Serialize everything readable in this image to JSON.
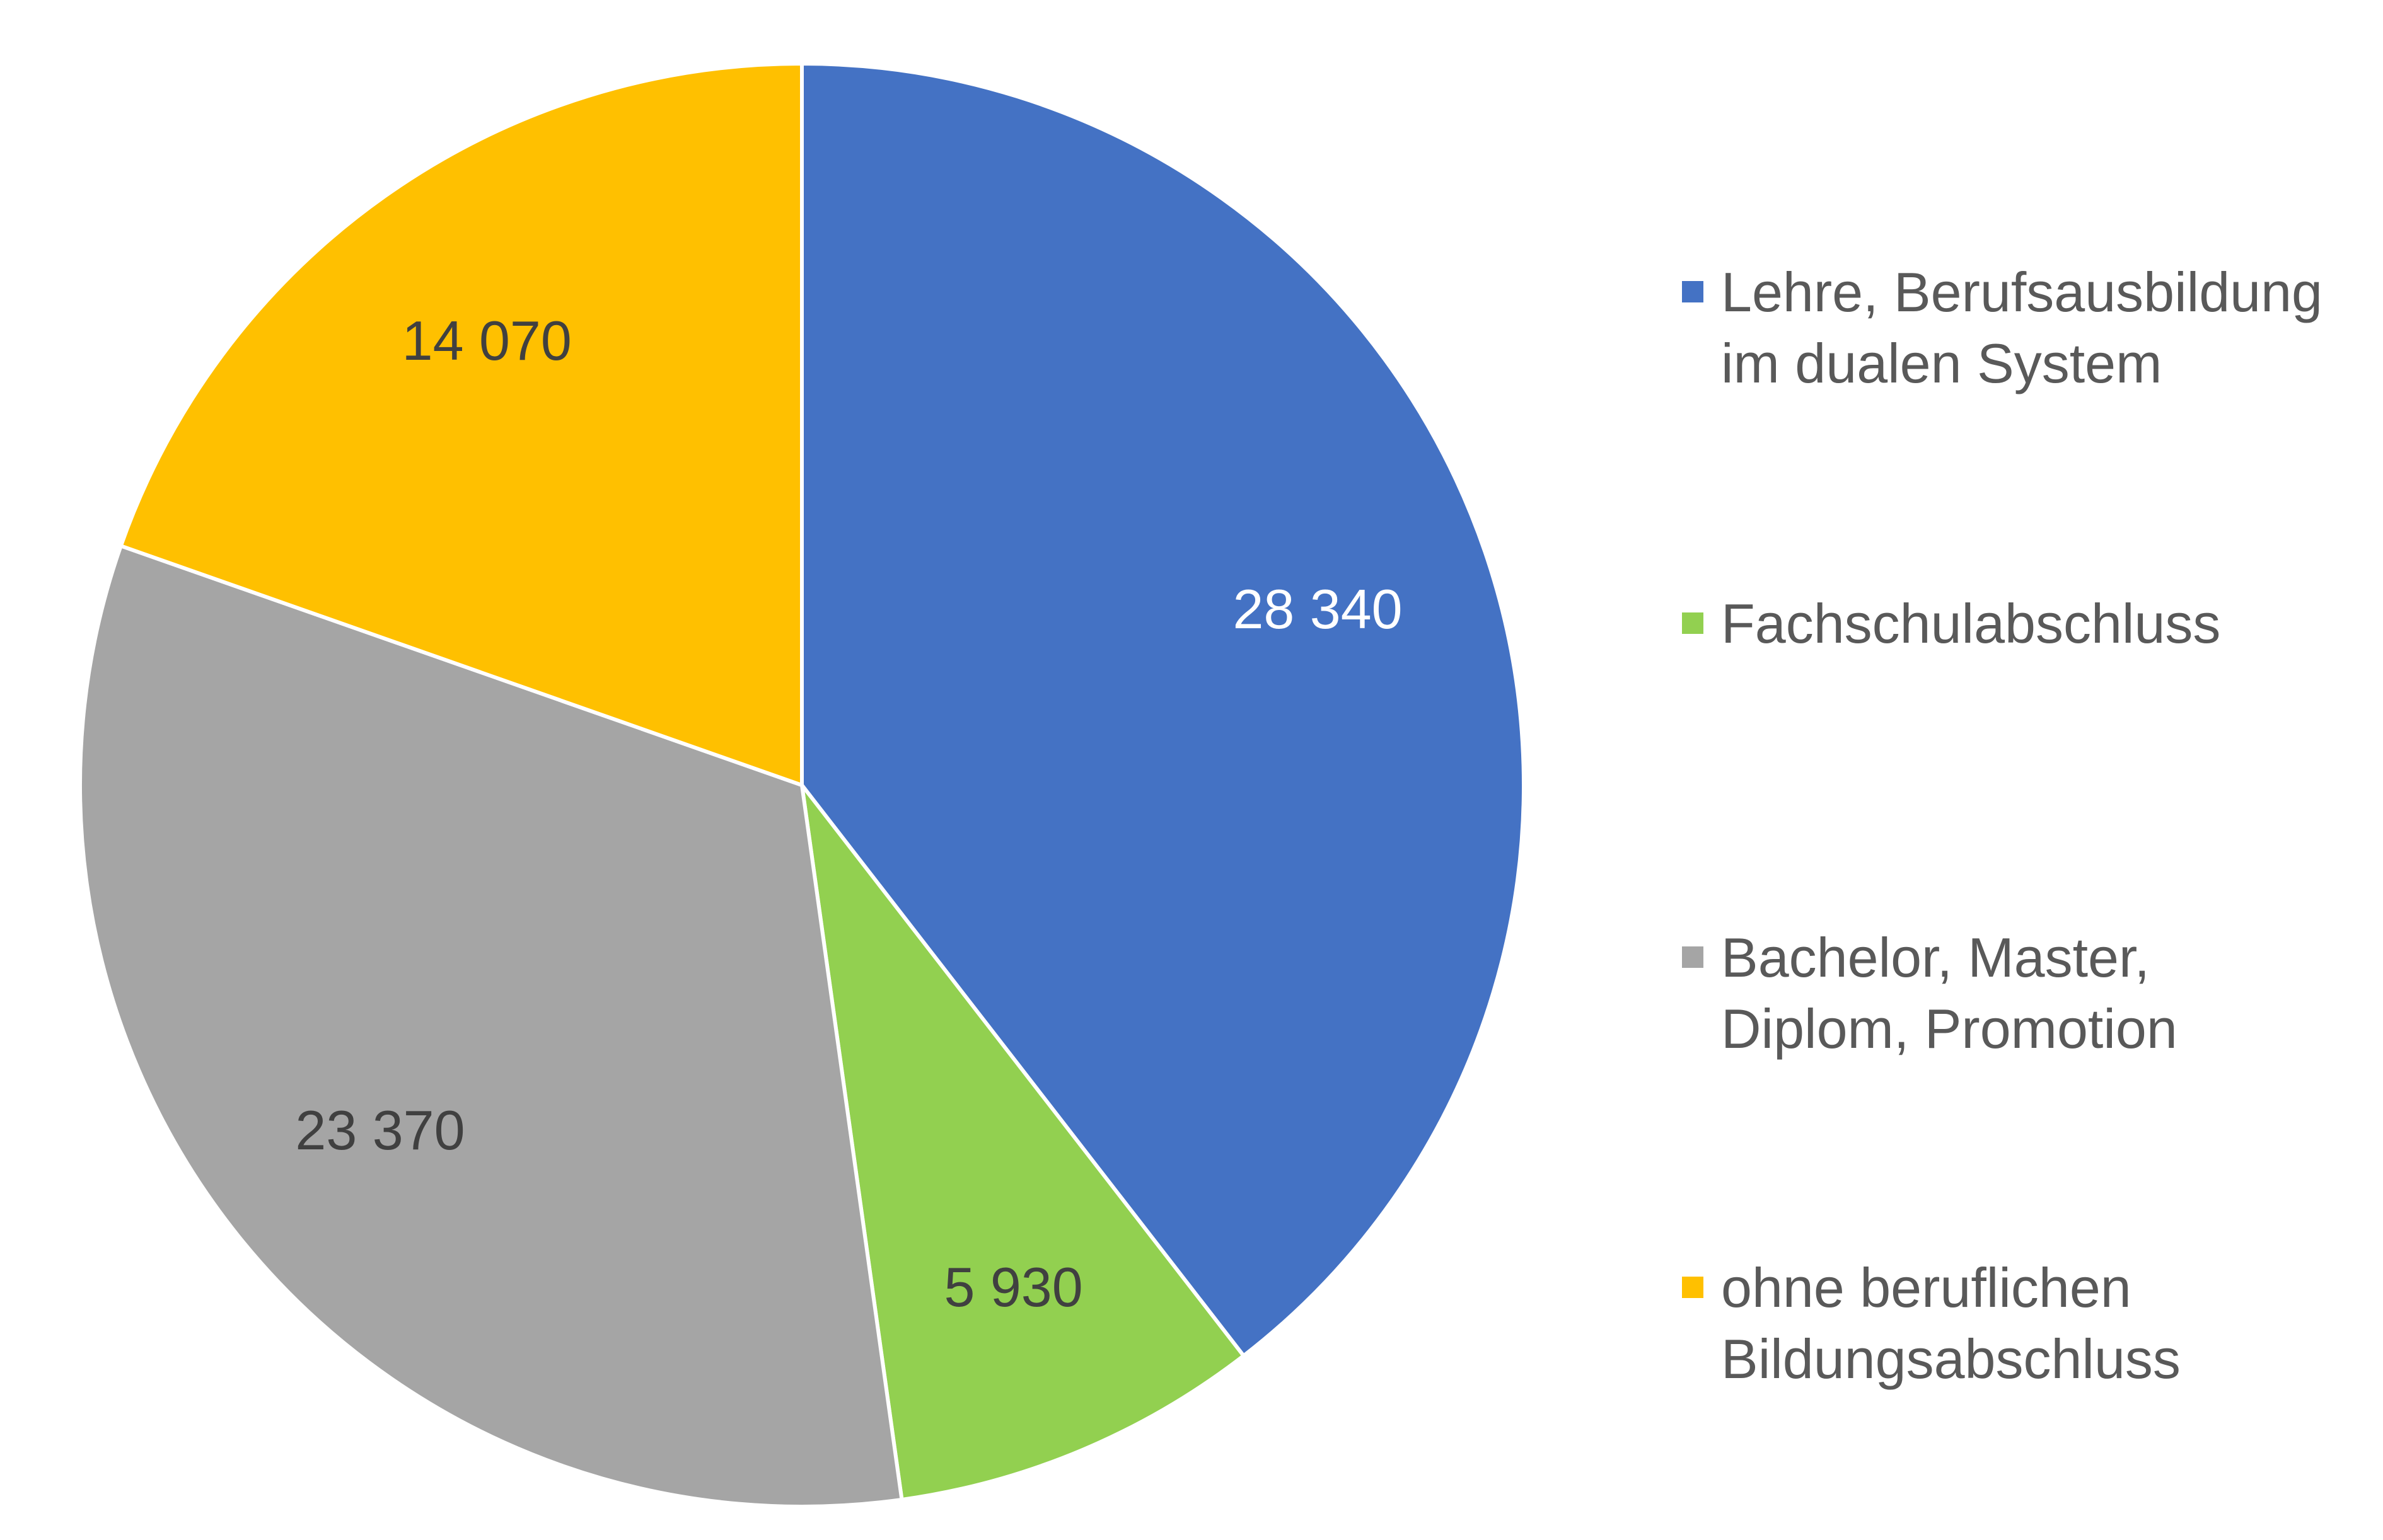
{
  "chart_data": {
    "type": "pie",
    "title": "",
    "categories": [
      "Lehre, Berufsausbildung im dualen System",
      "Fachschulabschluss",
      "Bachelor, Master, Diplom, Promotion",
      "ohne beruflichen Bildungsabschluss"
    ],
    "legend_lines": [
      [
        "Lehre, Berufsausbildung",
        "im dualen System"
      ],
      [
        "Fachschulabschluss"
      ],
      [
        "Bachelor, Master,",
        "Diplom, Promotion"
      ],
      [
        "ohne beruflichen",
        "Bildungsabschluss"
      ]
    ],
    "values": [
      28340,
      5930,
      23370,
      14070
    ],
    "data_labels": [
      "28 340",
      "5 930",
      "23 370",
      "14 070"
    ],
    "colors": [
      "#4472C4",
      "#92D050",
      "#A5A5A5",
      "#FFC000"
    ],
    "label_colors": [
      "#FFFFFF",
      "#404040",
      "#404040",
      "#404040"
    ],
    "start_angle_deg": 0,
    "direction": "clockwise",
    "legend_position": "right"
  }
}
